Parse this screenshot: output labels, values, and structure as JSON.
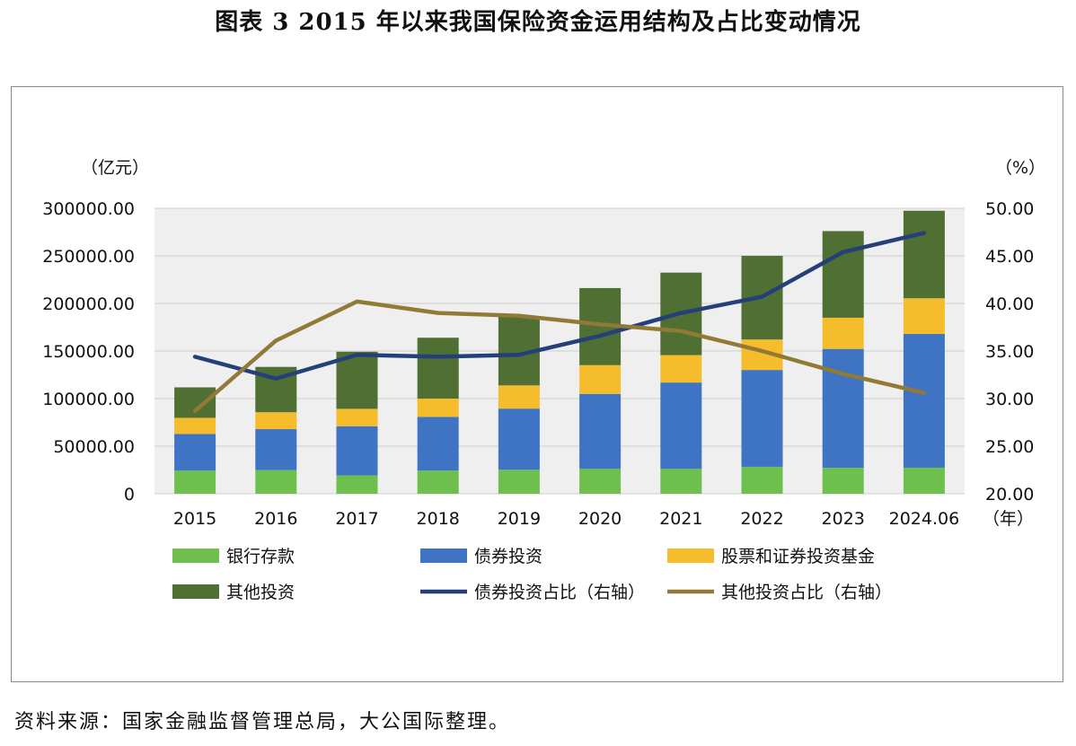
{
  "page": {
    "title": "图表 3  2015 年以来我国保险资金运用结构及占比变动情况",
    "source": "资料来源：国家金融监督管理总局，大公国际整理。"
  },
  "chart_data": {
    "type": "bar",
    "stacked": true,
    "left_unit": "（亿元）",
    "right_unit": "（%）",
    "x_unit": "（年）",
    "categories": [
      "2015",
      "2016",
      "2017",
      "2018",
      "2019",
      "2020",
      "2021",
      "2022",
      "2023",
      "2024.06"
    ],
    "ylim": [
      0,
      300000
    ],
    "y_ticks": [
      "0",
      "50000.00",
      "100000.00",
      "150000.00",
      "200000.00",
      "250000.00",
      "300000.00"
    ],
    "y_tick_values": [
      0,
      50000,
      100000,
      150000,
      200000,
      250000,
      300000
    ],
    "y2lim": [
      20,
      50
    ],
    "y2_ticks": [
      "20.00",
      "25.00",
      "30.00",
      "35.00",
      "40.00",
      "45.00",
      "50.00"
    ],
    "y2_tick_values": [
      20,
      25,
      30,
      35,
      40,
      45,
      50
    ],
    "grid": true,
    "series": [
      {
        "name": "银行存款",
        "kind": "bar",
        "color": "#6fbf4e",
        "values": [
          24350,
          24844,
          19274,
          24364,
          25227,
          26180,
          26179,
          28349,
          27180,
          27400
        ]
      },
      {
        "name": "债券投资",
        "kind": "bar",
        "color": "#3f73c4",
        "values": [
          38446,
          43050,
          51613,
          56383,
          64232,
          78750,
          90690,
          101726,
          125001,
          140500
        ]
      },
      {
        "name": "股票和证券投资基金",
        "kind": "bar",
        "color": "#f5bd2c",
        "values": [
          16969,
          17788,
          18353,
          19220,
          24400,
          30200,
          28800,
          32000,
          32800,
          37500
        ]
      },
      {
        "name": "其他投资",
        "kind": "bar",
        "color": "#4f6f33",
        "values": [
          32030,
          47600,
          60000,
          64000,
          72000,
          81000,
          86700,
          88000,
          91000,
          92000
        ]
      },
      {
        "name": "债券投资占比（右轴）",
        "kind": "line",
        "axis": "right",
        "color": "#243f7a",
        "values": [
          34.4,
          32.1,
          34.6,
          34.4,
          34.6,
          36.6,
          39.0,
          40.7,
          45.4,
          47.4
        ]
      },
      {
        "name": "其他投资占比（右轴）",
        "kind": "line",
        "axis": "right",
        "color": "#917a36",
        "values": [
          28.7,
          36.1,
          40.2,
          39.0,
          38.7,
          37.8,
          37.1,
          35.0,
          32.6,
          30.6
        ]
      }
    ],
    "legend": {
      "position": "bottom",
      "items": [
        "银行存款",
        "债券投资",
        "股票和证券投资基金",
        "其他投资",
        "债券投资占比（右轴）",
        "其他投资占比（右轴）"
      ]
    }
  }
}
